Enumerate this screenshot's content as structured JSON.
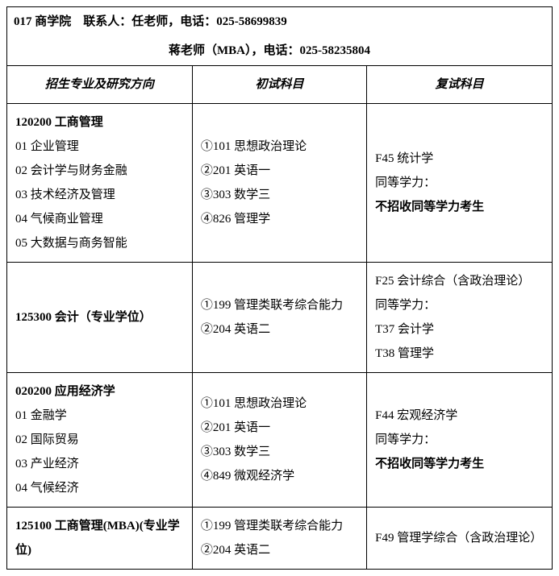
{
  "header": {
    "line1": "017 商学院　联系人：任老师，电话：025-58699839",
    "line2": "蒋老师（MBA），电话：025-58235804"
  },
  "columns": {
    "col1": "招生专业及研究方向",
    "col2": "初试科目",
    "col3": "复试科目"
  },
  "rows": [
    {
      "major_code": "120200 工商管理",
      "directions": [
        "01 企业管理",
        "02 会计学与财务金融",
        "03 技术经济及管理",
        "04 气候商业管理",
        "05 大数据与商务智能"
      ],
      "prelim": [
        "①101 思想政治理论",
        "②201 英语一",
        "③303 数学三",
        "④826 管理学"
      ],
      "retest": [
        {
          "text": "F45 统计学",
          "bold": false
        },
        {
          "text": "同等学力：",
          "bold": false
        },
        {
          "text": "不招收同等学力考生",
          "bold": true
        }
      ]
    },
    {
      "major_code": "125300 会计（专业学位）",
      "directions": [],
      "prelim": [
        "①199 管理类联考综合能力",
        "②204 英语二"
      ],
      "retest": [
        {
          "text": "F25 会计综合（含政治理论）",
          "bold": false
        },
        {
          "text": "同等学力：",
          "bold": false
        },
        {
          "text": "T37 会计学",
          "bold": false
        },
        {
          "text": "T38 管理学",
          "bold": false
        }
      ]
    },
    {
      "major_code": "020200 应用经济学",
      "directions": [
        "01 金融学",
        "02 国际贸易",
        "03 产业经济",
        "04 气候经济"
      ],
      "prelim": [
        "①101 思想政治理论",
        "②201 英语一",
        "③303 数学三",
        "④849 微观经济学"
      ],
      "retest": [
        {
          "text": "F44 宏观经济学",
          "bold": false
        },
        {
          "text": "同等学力：",
          "bold": false
        },
        {
          "text": "不招收同等学力考生",
          "bold": true
        }
      ]
    },
    {
      "major_code": "125100 工商管理(MBA)(专业学位)",
      "directions": [],
      "prelim": [
        "①199 管理类联考综合能力",
        "②204 英语二"
      ],
      "retest": [
        {
          "text": "F49 管理学综合（含政治理论）",
          "bold": false
        }
      ]
    }
  ]
}
